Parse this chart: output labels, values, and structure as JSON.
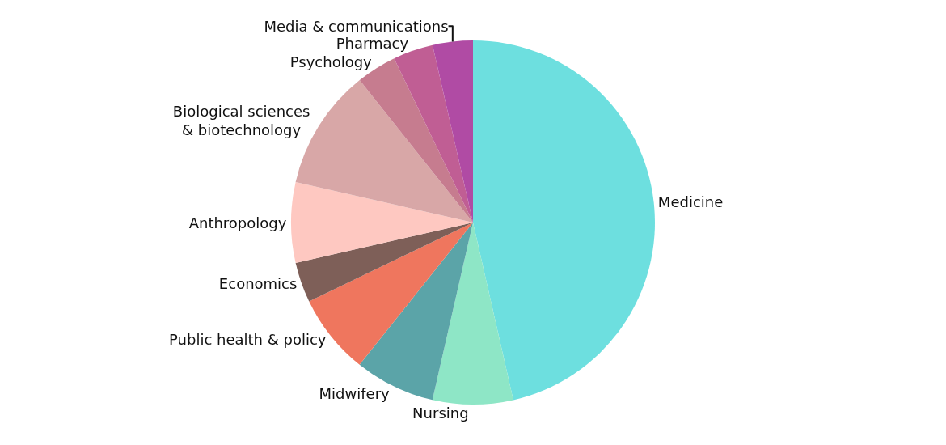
{
  "chart_data": {
    "type": "pie",
    "categories": [
      "Medicine",
      "Nursing",
      "Midwifery",
      "Public health & policy",
      "Economics",
      "Anthropology",
      "Biological sciences\n& biotechnology",
      "Psychology",
      "Pharmacy",
      "Media & communications"
    ],
    "values": [
      46.44,
      7.14,
      7.14,
      7.14,
      3.57,
      7.14,
      10.72,
      3.57,
      3.57,
      3.57
    ],
    "colors": [
      "#6ddfdf",
      "#8ee6c6",
      "#5ba4a8",
      "#ef765e",
      "#7e5f58",
      "#fec8c1",
      "#d8a7a7",
      "#c67c8f",
      "#c05e94",
      "#b04ba4"
    ],
    "legend": false
  }
}
